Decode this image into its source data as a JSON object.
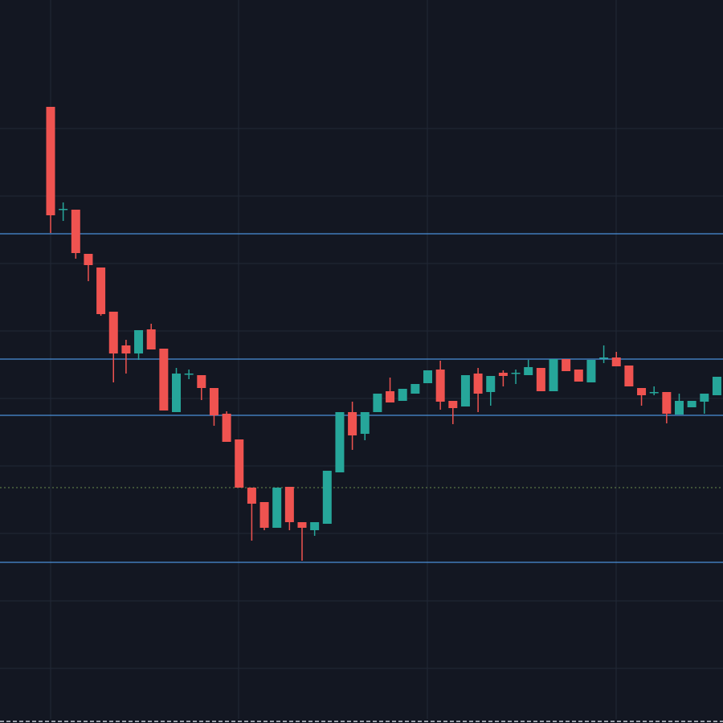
{
  "chart_data": {
    "type": "candlestick",
    "ylim": [
      0,
      900
    ],
    "up_color": "#26a69a",
    "down_color": "#ef5350",
    "level_color": "#4a90d9",
    "levels": [
      609,
      453,
      383,
      200
    ],
    "price_line": 293,
    "price_line_color": "#6b8e4e",
    "open": [
      767,
      640,
      639,
      584,
      567,
      512,
      470,
      460,
      490,
      466,
      387,
      435,
      433,
      417,
      385,
      353,
      293,
      275,
      243,
      294,
      250,
      240,
      248,
      312,
      387,
      360,
      387,
      413,
      401,
      410,
      423,
      440,
      401,
      394,
      435,
      412,
      436,
      436,
      433,
      442,
      413,
      453,
      440,
      424,
      455,
      455,
      445,
      417,
      412,
      412,
      384,
      393,
      400,
      408
    ],
    "high": [
      767,
      648,
      639,
      584,
      567,
      512,
      477,
      489,
      497,
      466,
      442,
      440,
      433,
      417,
      388,
      353,
      293,
      275,
      293,
      294,
      250,
      250,
      314,
      387,
      400,
      387,
      410,
      430,
      416,
      422,
      439,
      451,
      401,
      433,
      442,
      432,
      439,
      440,
      452,
      442,
      453,
      453,
      440,
      452,
      470,
      462,
      445,
      417,
      419,
      412,
      410,
      401,
      410,
      431
    ],
    "low": [
      610,
      625,
      578,
      550,
      507,
      424,
      435,
      452,
      465,
      389,
      387,
      428,
      402,
      370,
      350,
      293,
      227,
      240,
      243,
      240,
      202,
      233,
      248,
      312,
      340,
      352,
      387,
      399,
      401,
      410,
      423,
      390,
      372,
      394,
      387,
      395,
      419,
      422,
      433,
      413,
      413,
      438,
      425,
      424,
      448,
      444,
      419,
      395,
      408,
      373,
      384,
      393,
      385,
      408
    ],
    "close": [
      632,
      640,
      585,
      570,
      509,
      460,
      460,
      489,
      465,
      389,
      435,
      435,
      417,
      383,
      350,
      293,
      273,
      243,
      293,
      250,
      243,
      250,
      314,
      387,
      358,
      387,
      410,
      399,
      416,
      422,
      439,
      400,
      392,
      433,
      410,
      432,
      432,
      436,
      443,
      413,
      453,
      438,
      425,
      452,
      455,
      444,
      419,
      408,
      412,
      385,
      401,
      401,
      410,
      431
    ]
  }
}
